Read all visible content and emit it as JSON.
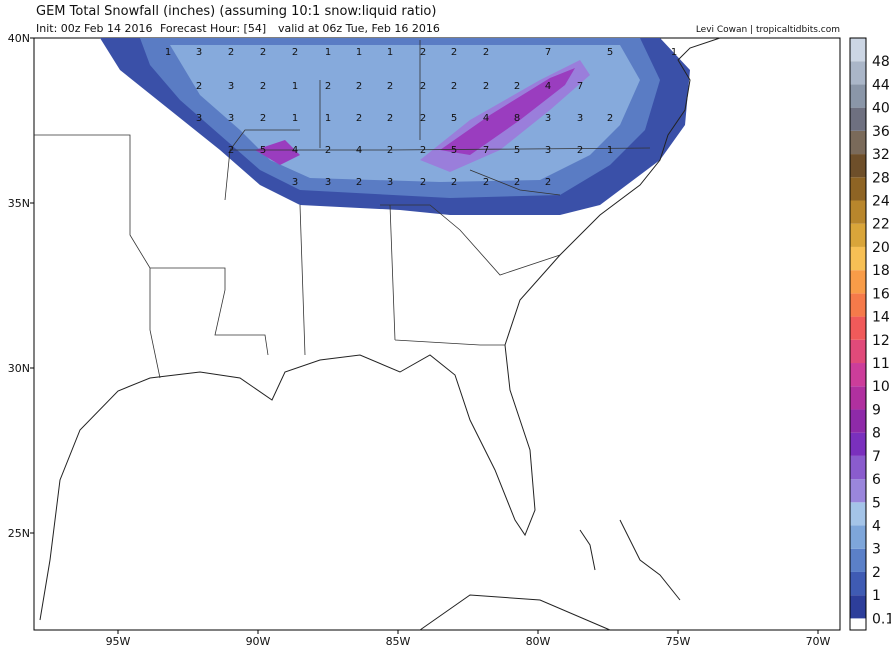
{
  "header": {
    "title": "GEM Total Snowfall (inches) (assuming 10:1 snow:liquid ratio)",
    "init": "Init: 00z Feb 14 2016",
    "forecast_hour": "Forecast Hour: [54]",
    "valid": "valid at 06z Tue, Feb 16 2016",
    "credit": "Levi Cowan | tropicaltidbits.com"
  },
  "map": {
    "lat_labels": [
      "40N",
      "35N",
      "30N",
      "25N"
    ],
    "lon_labels": [
      "95W",
      "90W",
      "85W",
      "80W",
      "75W",
      "70W"
    ],
    "contour_labels": [
      "1",
      "3",
      "2",
      "2",
      "2",
      "1",
      "1",
      "1",
      "2",
      "2",
      "2",
      "7",
      "5",
      "1",
      "2",
      "3",
      "2",
      "1",
      "2",
      "2",
      "2",
      "2",
      "2",
      "2",
      "2",
      "4",
      "7",
      "3",
      "3",
      "2",
      "1",
      "1",
      "2",
      "2",
      "2",
      "5",
      "4",
      "8",
      "3",
      "3",
      "2",
      "2",
      "5",
      "4",
      "2",
      "4",
      "2",
      "2",
      "5",
      "7",
      "5",
      "3",
      "2",
      "1",
      "3",
      "3",
      "2",
      "3",
      "2",
      "2",
      "2",
      "2",
      "2"
    ]
  },
  "colorbar": {
    "levels": [
      "0.1",
      "1",
      "2",
      "3",
      "4",
      "5",
      "6",
      "7",
      "8",
      "9",
      "10",
      "11",
      "12",
      "14",
      "16",
      "18",
      "20",
      "22",
      "24",
      "28",
      "32",
      "36",
      "40",
      "44",
      "48"
    ],
    "colors": [
      "#2d3e9a",
      "#3f5bb3",
      "#5b80c8",
      "#7ea6da",
      "#a4c4e8",
      "#9a86dc",
      "#8a5ccd",
      "#7a30bd",
      "#8e2aa8",
      "#b0309f",
      "#cc3d9a",
      "#e04a7a",
      "#f05a5a",
      "#f57a4a",
      "#f89c48",
      "#f7c055",
      "#d9a53a",
      "#b8862c",
      "#8e6424",
      "#6e4f2a",
      "#7a6a5a",
      "#6e7080",
      "#8a96a8",
      "#aab6c8",
      "#ccd6e4"
    ]
  }
}
